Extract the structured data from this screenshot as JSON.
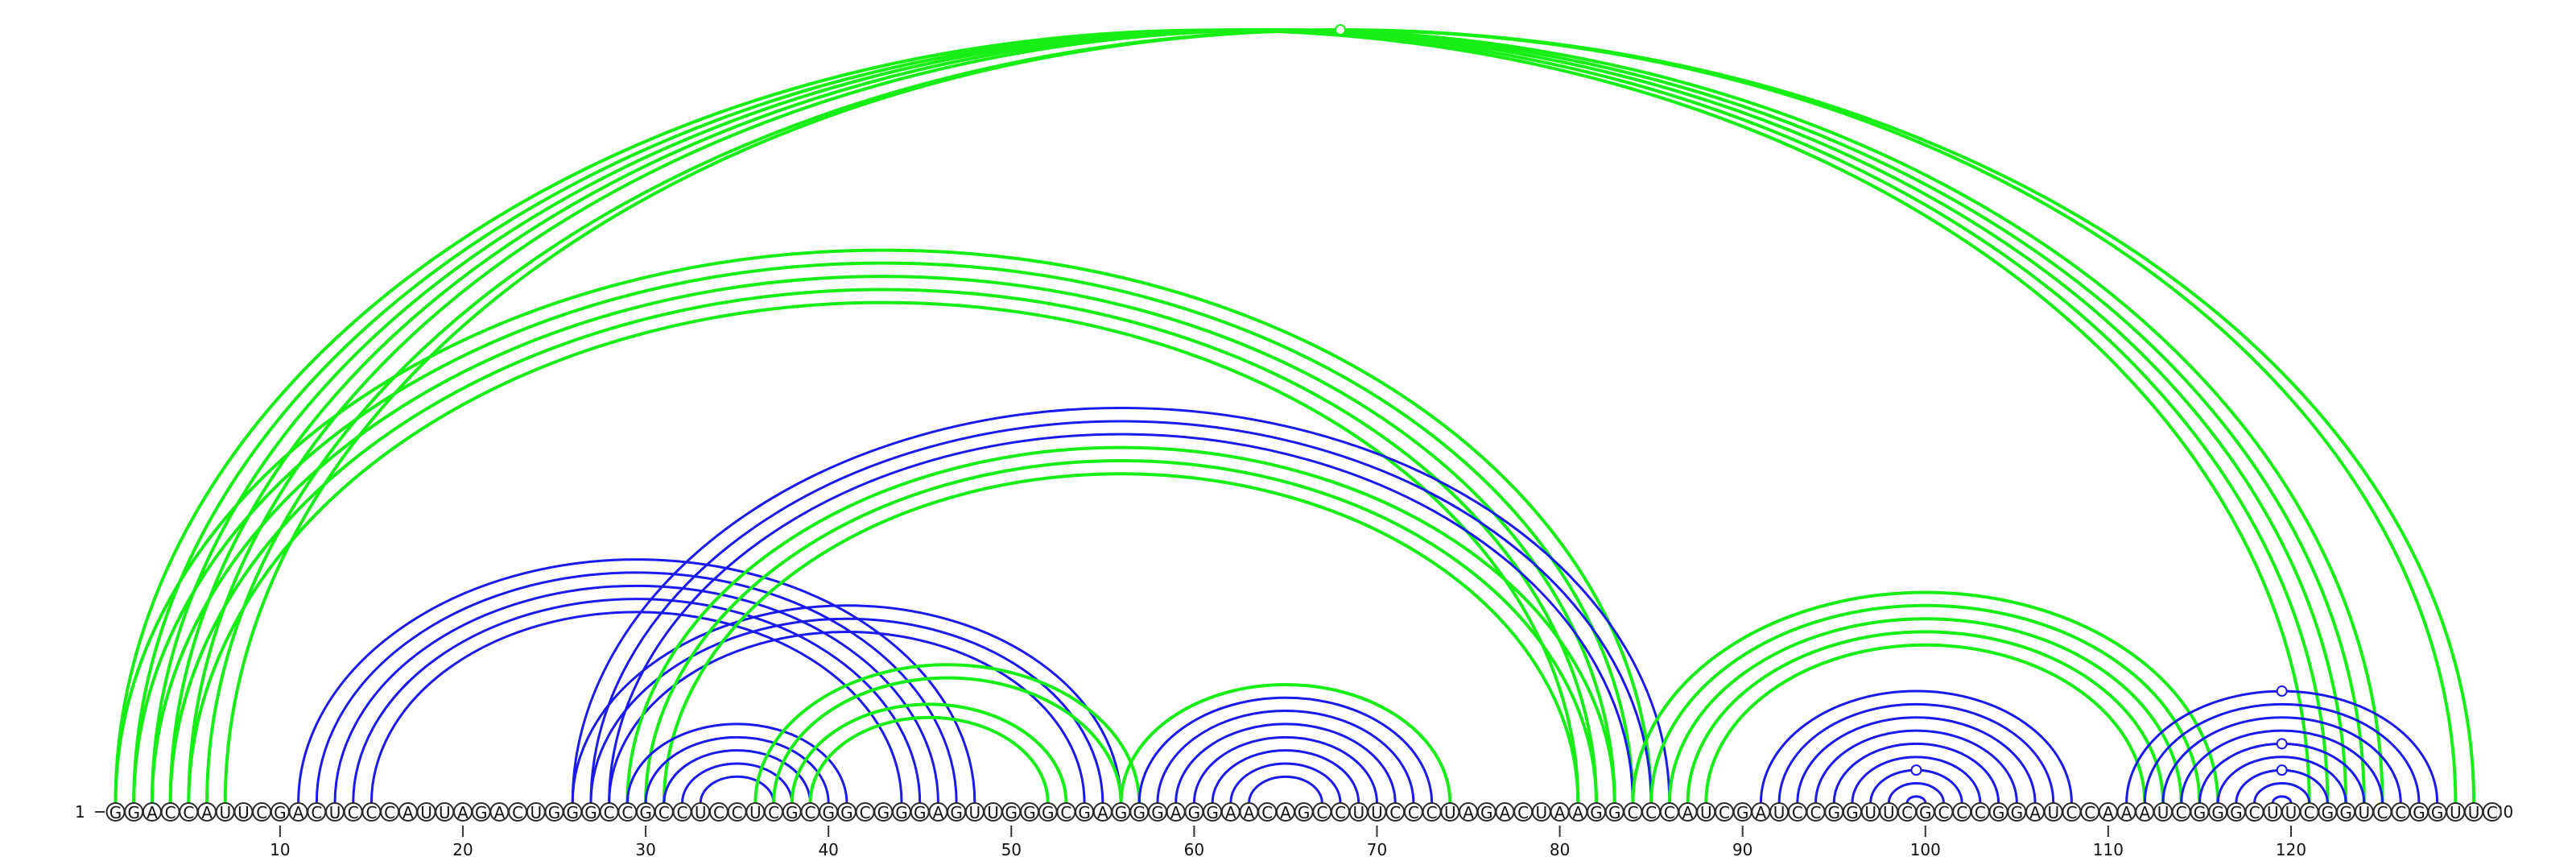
{
  "sequence": "GGACCAUUCGACUCCCAUUAGACUGGGCCGCCUCCUCGCGGCGGGAGUUGGGCGAGGGAGGAACAGCCUUCCCUAGACUAAGGCCCAUCGAUCCGGUUCGCCCGGAUCCAAAUCGGGCUUCGGUCCGGUUC",
  "start_label": "1",
  "end_label": "130",
  "tick_positions": [
    10,
    20,
    30,
    40,
    50,
    60,
    70,
    80,
    90,
    100,
    110,
    120
  ],
  "tick_labels": [
    "10",
    "20",
    "30",
    "40",
    "50",
    "60",
    "70",
    "80",
    "90",
    "100",
    "110",
    "120"
  ],
  "colors": {
    "blue": "#1a1aee",
    "green": "#16ee16"
  },
  "base_pairs": [
    {
      "i": 1,
      "j": 85,
      "color": "green"
    },
    {
      "i": 2,
      "j": 84,
      "color": "green"
    },
    {
      "i": 3,
      "j": 83,
      "color": "green"
    },
    {
      "i": 4,
      "j": 82,
      "color": "green"
    },
    {
      "i": 5,
      "j": 81,
      "color": "green"
    },
    {
      "i": 1,
      "j": 121,
      "color": "green"
    },
    {
      "i": 2,
      "j": 122,
      "color": "green"
    },
    {
      "i": 3,
      "j": 123,
      "color": "green"
    },
    {
      "i": 4,
      "j": 124,
      "color": "green"
    },
    {
      "i": 5,
      "j": 125,
      "color": "green"
    },
    {
      "i": 6,
      "j": 130,
      "color": "green"
    },
    {
      "i": 7,
      "j": 129,
      "color": "green"
    },
    {
      "i": 11,
      "j": 48,
      "color": "blue"
    },
    {
      "i": 12,
      "j": 47,
      "color": "blue"
    },
    {
      "i": 13,
      "j": 46,
      "color": "blue"
    },
    {
      "i": 14,
      "j": 45,
      "color": "blue"
    },
    {
      "i": 15,
      "j": 44,
      "color": "blue"
    },
    {
      "i": 26,
      "j": 56,
      "color": "blue"
    },
    {
      "i": 27,
      "j": 55,
      "color": "blue"
    },
    {
      "i": 28,
      "j": 54,
      "color": "blue"
    },
    {
      "i": 26,
      "j": 86,
      "color": "blue"
    },
    {
      "i": 27,
      "j": 85,
      "color": "blue"
    },
    {
      "i": 28,
      "j": 84,
      "color": "blue"
    },
    {
      "i": 29,
      "j": 83,
      "color": "green"
    },
    {
      "i": 30,
      "j": 82,
      "color": "green"
    },
    {
      "i": 31,
      "j": 81,
      "color": "green"
    },
    {
      "i": 29,
      "j": 41,
      "color": "blue"
    },
    {
      "i": 30,
      "j": 40,
      "color": "blue"
    },
    {
      "i": 31,
      "j": 39,
      "color": "blue"
    },
    {
      "i": 32,
      "j": 38,
      "color": "blue"
    },
    {
      "i": 33,
      "j": 37,
      "color": "blue"
    },
    {
      "i": 36,
      "j": 57,
      "color": "green"
    },
    {
      "i": 37,
      "j": 56,
      "color": "green"
    },
    {
      "i": 38,
      "j": 53,
      "color": "green"
    },
    {
      "i": 39,
      "j": 52,
      "color": "green"
    },
    {
      "i": 56,
      "j": 74,
      "color": "green"
    },
    {
      "i": 57,
      "j": 73,
      "color": "blue"
    },
    {
      "i": 58,
      "j": 72,
      "color": "blue"
    },
    {
      "i": 59,
      "j": 71,
      "color": "blue"
    },
    {
      "i": 60,
      "j": 70,
      "color": "blue"
    },
    {
      "i": 61,
      "j": 69,
      "color": "blue"
    },
    {
      "i": 62,
      "j": 68,
      "color": "blue"
    },
    {
      "i": 63,
      "j": 67,
      "color": "blue"
    },
    {
      "i": 84,
      "j": 116,
      "color": "green"
    },
    {
      "i": 85,
      "j": 115,
      "color": "green"
    },
    {
      "i": 86,
      "j": 114,
      "color": "green"
    },
    {
      "i": 87,
      "j": 113,
      "color": "green"
    },
    {
      "i": 88,
      "j": 112,
      "color": "green"
    },
    {
      "i": 91,
      "j": 108,
      "color": "blue"
    },
    {
      "i": 92,
      "j": 107,
      "color": "blue"
    },
    {
      "i": 93,
      "j": 106,
      "color": "blue"
    },
    {
      "i": 94,
      "j": 105,
      "color": "blue"
    },
    {
      "i": 95,
      "j": 104,
      "color": "blue"
    },
    {
      "i": 96,
      "j": 103,
      "color": "blue"
    },
    {
      "i": 97,
      "j": 102,
      "color": "blue"
    },
    {
      "i": 98,
      "j": 101,
      "color": "blue"
    },
    {
      "i": 99,
      "j": 100,
      "color": "blue"
    },
    {
      "i": 111,
      "j": 128,
      "color": "blue"
    },
    {
      "i": 112,
      "j": 127,
      "color": "blue"
    },
    {
      "i": 113,
      "j": 126,
      "color": "blue"
    },
    {
      "i": 114,
      "j": 125,
      "color": "blue"
    },
    {
      "i": 115,
      "j": 124,
      "color": "blue"
    },
    {
      "i": 116,
      "j": 123,
      "color": "blue"
    },
    {
      "i": 117,
      "j": 122,
      "color": "blue"
    },
    {
      "i": 118,
      "j": 121,
      "color": "blue"
    },
    {
      "i": 119,
      "j": 120,
      "color": "blue"
    }
  ],
  "markers": [
    {
      "i": 6,
      "j": 130,
      "color": "green"
    },
    {
      "i": 111,
      "j": 128,
      "color": "blue"
    },
    {
      "i": 115,
      "j": 124,
      "color": "blue"
    },
    {
      "i": 117,
      "j": 122,
      "color": "blue"
    },
    {
      "i": 97,
      "j": 102,
      "color": "blue"
    }
  ]
}
